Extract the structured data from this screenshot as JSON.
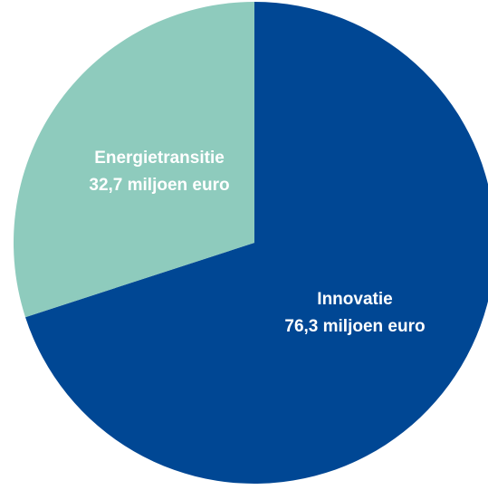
{
  "chart_data": {
    "type": "pie",
    "start": "12 o'clock",
    "direction": "clockwise",
    "slices": [
      {
        "name": "Innovatie",
        "value": 76.3,
        "value_label": "76,3 miljoen euro",
        "color": "#004794"
      },
      {
        "name": "Energietransitie",
        "value": 32.7,
        "value_label": "32,7 miljoen euro",
        "color": "#8ecbbd"
      }
    ]
  }
}
